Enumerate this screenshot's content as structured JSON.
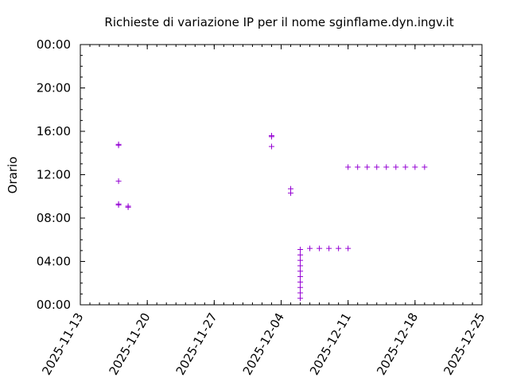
{
  "chart_data": {
    "type": "scatter",
    "title": "Richieste di variazione IP per il nome sginflame.dyn.ingv.it",
    "xlabel": "",
    "ylabel": "Orario",
    "marker": "+",
    "color": "#9400d3",
    "x_ticks": [
      "2025-11-13",
      "2025-11-20",
      "2025-11-27",
      "2025-12-04",
      "2025-12-11",
      "2025-12-18",
      "2025-12-25"
    ],
    "y_ticks": [
      "00:00",
      "04:00",
      "08:00",
      "12:00",
      "16:00",
      "20:00",
      "00:00"
    ],
    "x_range_days": [
      0,
      42
    ],
    "y_range_hours": [
      0,
      24
    ],
    "points": [
      {
        "day": 4.0,
        "hour": 14.8
      },
      {
        "day": 4.0,
        "hour": 14.7
      },
      {
        "day": 4.0,
        "hour": 11.4
      },
      {
        "day": 4.0,
        "hour": 9.2
      },
      {
        "day": 4.0,
        "hour": 9.3
      },
      {
        "day": 5.0,
        "hour": 9.1
      },
      {
        "day": 5.0,
        "hour": 9.0
      },
      {
        "day": 20.0,
        "hour": 15.6
      },
      {
        "day": 20.0,
        "hour": 15.5
      },
      {
        "day": 20.0,
        "hour": 14.6
      },
      {
        "day": 22.0,
        "hour": 10.7
      },
      {
        "day": 22.0,
        "hour": 10.3
      },
      {
        "day": 23.0,
        "hour": 5.1
      },
      {
        "day": 23.0,
        "hour": 4.6
      },
      {
        "day": 23.0,
        "hour": 4.1
      },
      {
        "day": 23.0,
        "hour": 3.6
      },
      {
        "day": 23.0,
        "hour": 3.1
      },
      {
        "day": 23.0,
        "hour": 2.6
      },
      {
        "day": 23.0,
        "hour": 2.1
      },
      {
        "day": 23.0,
        "hour": 1.6
      },
      {
        "day": 23.0,
        "hour": 1.1
      },
      {
        "day": 23.0,
        "hour": 0.6
      },
      {
        "day": 24.0,
        "hour": 5.2
      },
      {
        "day": 25.0,
        "hour": 5.2
      },
      {
        "day": 26.0,
        "hour": 5.2
      },
      {
        "day": 27.0,
        "hour": 5.2
      },
      {
        "day": 28.0,
        "hour": 5.2
      },
      {
        "day": 28.0,
        "hour": 12.7
      },
      {
        "day": 29.0,
        "hour": 12.7
      },
      {
        "day": 30.0,
        "hour": 12.7
      },
      {
        "day": 31.0,
        "hour": 12.7
      },
      {
        "day": 32.0,
        "hour": 12.7
      },
      {
        "day": 33.0,
        "hour": 12.7
      },
      {
        "day": 34.0,
        "hour": 12.7
      },
      {
        "day": 35.0,
        "hour": 12.7
      },
      {
        "day": 36.0,
        "hour": 12.7
      }
    ]
  }
}
